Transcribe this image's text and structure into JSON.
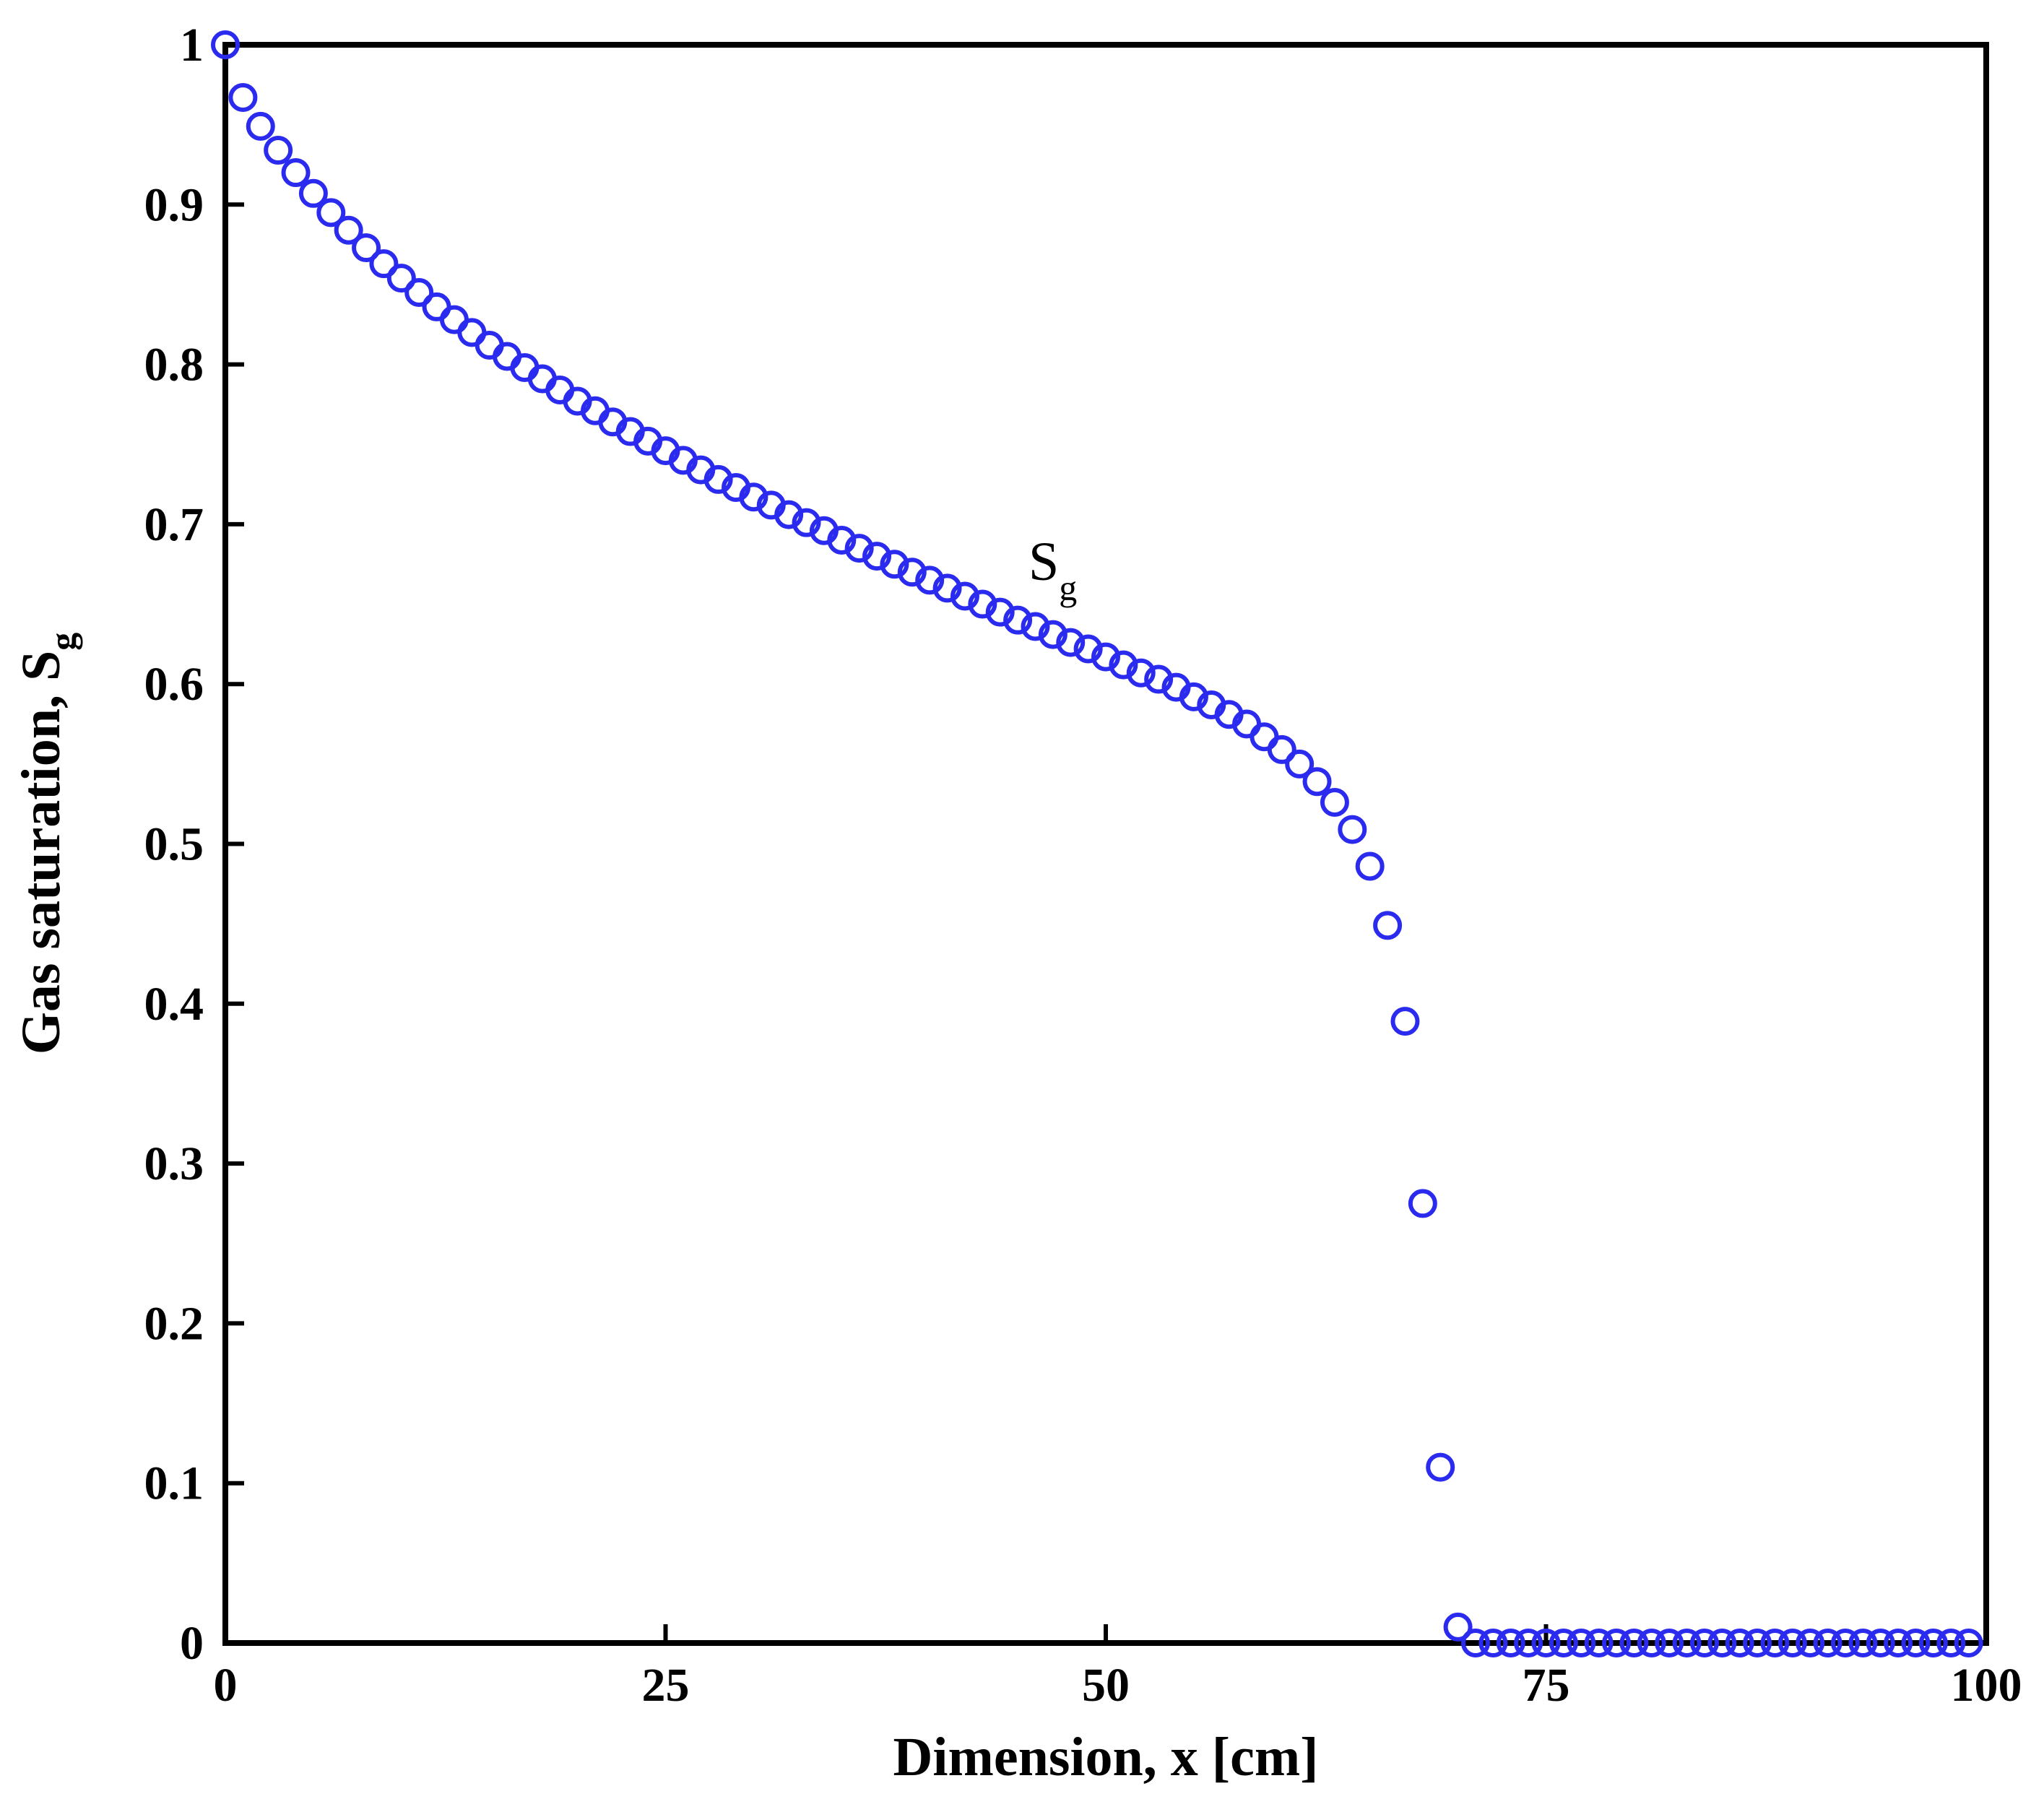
{
  "chart_data": {
    "type": "scatter",
    "title": "",
    "xlabel": "Dimension, x [cm]",
    "ylabel_main": "Gas saturation, S",
    "ylabel_sub": "g",
    "xlim": [
      0,
      100
    ],
    "ylim": [
      0,
      1
    ],
    "xticks": [
      0,
      25,
      50,
      75,
      100
    ],
    "xtick_labels": [
      "0",
      "25",
      "50",
      "75",
      "100"
    ],
    "yticks": [
      0,
      0.1,
      0.2,
      0.3,
      0.4,
      0.5,
      0.6,
      0.7,
      0.8,
      0.9,
      1
    ],
    "ytick_labels": [
      "0",
      "0.1",
      "0.2",
      "0.3",
      "0.4",
      "0.5",
      "0.6",
      "0.7",
      "0.8",
      "0.9",
      "1"
    ],
    "grid": false,
    "legend": "none",
    "annotation": {
      "text": "S",
      "sub": "g",
      "x": 47,
      "y": 0.67
    },
    "series": [
      {
        "name": "Sg",
        "marker": "open-circle",
        "color": "#2b2bf0",
        "x": [
          0,
          1,
          2,
          3,
          4,
          5,
          6,
          7,
          8,
          9,
          10,
          11,
          12,
          13,
          14,
          15,
          16,
          17,
          18,
          19,
          20,
          21,
          22,
          23,
          24,
          25,
          26,
          27,
          28,
          29,
          30,
          31,
          32,
          33,
          34,
          35,
          36,
          37,
          38,
          39,
          40,
          41,
          42,
          43,
          44,
          45,
          46,
          47,
          48,
          49,
          50,
          51,
          52,
          53,
          54,
          55,
          56,
          57,
          58,
          59,
          60,
          61,
          62,
          63,
          64,
          65,
          66,
          67,
          68,
          69,
          70,
          71,
          72,
          73,
          74,
          75,
          76,
          77,
          78,
          79,
          80,
          81,
          82,
          83,
          84,
          85,
          86,
          87,
          88,
          89,
          90,
          91,
          92,
          93,
          94,
          95,
          96,
          97,
          98,
          99
        ],
        "y": [
          1.0,
          0.967,
          0.949,
          0.934,
          0.92,
          0.907,
          0.895,
          0.884,
          0.873,
          0.863,
          0.854,
          0.845,
          0.836,
          0.828,
          0.82,
          0.812,
          0.805,
          0.798,
          0.791,
          0.784,
          0.777,
          0.771,
          0.764,
          0.758,
          0.752,
          0.746,
          0.74,
          0.734,
          0.728,
          0.723,
          0.717,
          0.712,
          0.706,
          0.701,
          0.696,
          0.69,
          0.685,
          0.68,
          0.675,
          0.67,
          0.665,
          0.66,
          0.655,
          0.65,
          0.645,
          0.64,
          0.636,
          0.631,
          0.626,
          0.622,
          0.617,
          0.612,
          0.607,
          0.603,
          0.598,
          0.592,
          0.587,
          0.581,
          0.575,
          0.567,
          0.559,
          0.55,
          0.539,
          0.526,
          0.509,
          0.486,
          0.449,
          0.389,
          0.275,
          0.11,
          0.01,
          0.0,
          0.0,
          0.0,
          0.0,
          0.0,
          0.0,
          0.0,
          0.0,
          0.0,
          0.0,
          0.0,
          0.0,
          0.0,
          0.0,
          0.0,
          0.0,
          0.0,
          0.0,
          0.0,
          0.0,
          0.0,
          0.0,
          0.0,
          0.0,
          0.0,
          0.0,
          0.0,
          0.0,
          0.0
        ]
      }
    ]
  }
}
